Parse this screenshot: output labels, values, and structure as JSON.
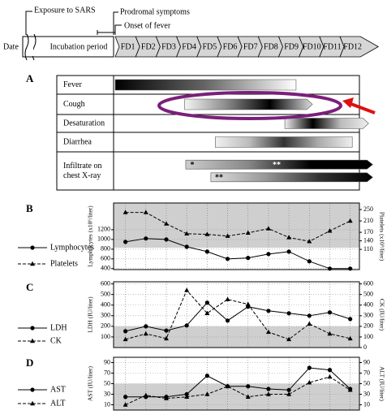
{
  "timeline": {
    "date_label": "Date",
    "incubation": "Incubation period",
    "days": [
      "FD1",
      "FD2",
      "FD3",
      "FD4",
      "FD5",
      "FD6",
      "FD7",
      "FD8",
      "FD9",
      "FD10",
      "FD11",
      "FD12"
    ],
    "exposure": "Exposure to SARS",
    "prodromal": "Prodromal symptoms",
    "onset": "Onset of fever"
  },
  "panel_a": {
    "letter": "A",
    "rows": [
      {
        "label": [
          "Fever"
        ],
        "bars": [
          {
            "start": 0.5,
            "end": 9.35,
            "arrow": false,
            "colors": [
              "#000000",
              "#666666",
              "#ffffff"
            ]
          }
        ]
      },
      {
        "label": [
          "Cough"
        ],
        "bars": [
          {
            "start": 3.9,
            "end": 10.15,
            "arrow": true,
            "colors": [
              "#f5f5f5",
              "#888888",
              "#000000",
              "#dddddd"
            ]
          }
        ]
      },
      {
        "label": [
          "Desaturation"
        ],
        "bars": [
          {
            "start": 8.8,
            "end": 12.9,
            "arrow": true,
            "colors": [
              "#eeeeee",
              "#000000",
              "#bbbbbb",
              "#eeeeee"
            ]
          }
        ]
      },
      {
        "label": [
          "Diarrhea"
        ],
        "bars": [
          {
            "start": 5.4,
            "end": 12.1,
            "arrow": false,
            "colors": [
              "#f0f0f0",
              "#bbbbbb",
              "#333333",
              "#aaaaaa",
              "#eeeeee"
            ]
          }
        ]
      },
      {
        "label": [
          "Infiltrate on",
          "chest X-ray"
        ],
        "bars": [
          {
            "start": 3.95,
            "end": 13.1,
            "arrow": true,
            "colors": [
              "#cccccc",
              "#888888",
              "#000000",
              "#000000"
            ],
            "marks": [
              {
                "at": 4.27,
                "label": "*"
              },
              {
                "at": 8.4,
                "label": "**"
              }
            ]
          },
          {
            "start": 5.18,
            "end": 13.1,
            "arrow": true,
            "colors": [
              "#dddddd",
              "#999999",
              "#333333",
              "#000000"
            ],
            "marks": [
              {
                "at": 5.58,
                "label": "**"
              }
            ]
          }
        ]
      }
    ]
  },
  "chart_data": [
    {
      "type": "line",
      "letter": "B",
      "y_label": "Lymphocytes (x10⁶/liter)",
      "y2_label": "Platelets (x10⁹/liter)",
      "x": [
        1,
        2,
        3,
        4,
        5,
        6,
        7,
        8,
        9,
        10,
        11,
        12
      ],
      "xlim": [
        0.42,
        12.45
      ],
      "ylim": [
        380,
        1750
      ],
      "yticks": [
        400,
        600,
        800,
        1000,
        1200
      ],
      "y2lim": [
        39,
        273
      ],
      "y2ticks": [
        110,
        140,
        170,
        210,
        250
      ],
      "shade": [
        830,
        1750
      ],
      "grid": true,
      "series": [
        {
          "name": "Lymphocytes",
          "color": "#000000",
          "marker": "circle",
          "dash": false,
          "values": [
            950,
            1020,
            1000,
            850,
            750,
            600,
            620,
            700,
            750,
            550,
            400,
            400
          ]
        },
        {
          "name": "Platelets",
          "axis": "y2",
          "color": "#000000",
          "marker": "triangle",
          "dash": true,
          "values": [
            240,
            240,
            200,
            165,
            163,
            157,
            168,
            183,
            152,
            138,
            175,
            210
          ]
        }
      ]
    },
    {
      "type": "line",
      "letter": "C",
      "y_label": "LDH (IU/liter)",
      "y2_label": "CK (IU/liter)",
      "x": [
        1,
        2,
        3,
        4,
        5,
        6,
        7,
        8,
        9,
        10,
        11,
        12
      ],
      "xlim": [
        0.42,
        12.45
      ],
      "ylim": [
        0,
        620
      ],
      "yticks": [
        100,
        200,
        300,
        400,
        500,
        600
      ],
      "y2lim": [
        0,
        620
      ],
      "y2ticks": [
        0,
        100,
        200,
        300,
        400,
        500,
        600
      ],
      "shade": [
        0,
        200
      ],
      "grid": true,
      "series": [
        {
          "name": "LDH",
          "color": "#000000",
          "marker": "circle",
          "dash": false,
          "values": [
            154,
            200,
            160,
            208,
            423,
            254,
            385,
            346,
            323,
            300,
            331,
            269
          ]
        },
        {
          "name": "CK",
          "axis": "y2",
          "color": "#000000",
          "marker": "triangle",
          "dash": true,
          "values": [
            77,
            130,
            85,
            540,
            323,
            454,
            408,
            146,
            77,
            223,
            130,
            85
          ]
        }
      ]
    },
    {
      "type": "line",
      "letter": "D",
      "y_label": "AST (IU/liter)",
      "y2_label": "ALT (IU/liter)",
      "x": [
        1,
        2,
        3,
        4,
        5,
        6,
        7,
        8,
        9,
        10,
        11,
        12
      ],
      "xlim": [
        0.42,
        12.45
      ],
      "ylim": [
        0,
        100
      ],
      "yticks": [
        10,
        30,
        50,
        70,
        90
      ],
      "y2lim": [
        0,
        100
      ],
      "y2ticks": [
        10,
        30,
        50,
        70,
        90
      ],
      "shade": [
        0,
        50
      ],
      "grid": true,
      "series": [
        {
          "name": "AST",
          "color": "#000000",
          "marker": "circle",
          "dash": false,
          "values": [
            25,
            25,
            25,
            30,
            65,
            45,
            45,
            40,
            38,
            80,
            76,
            40
          ]
        },
        {
          "name": "ALT",
          "axis": "y2",
          "color": "#000000",
          "marker": "triangle",
          "dash": true,
          "values": [
            10,
            28,
            22,
            25,
            30,
            45,
            25,
            30,
            30,
            52,
            63,
            38
          ]
        }
      ]
    }
  ]
}
